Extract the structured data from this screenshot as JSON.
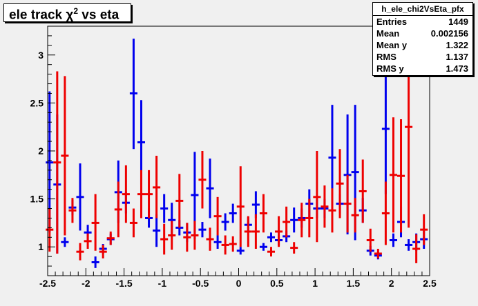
{
  "title_main": "ele track χ",
  "title_sup": "2",
  "title_rest": " vs eta",
  "stats": {
    "name": "h_ele_chi2VsEta_pfx",
    "rows": [
      {
        "key": "Entries",
        "value": "1449"
      },
      {
        "key": "Mean",
        "value": "0.002156"
      },
      {
        "key": "Mean y",
        "value": "1.322"
      },
      {
        "key": "RMS",
        "value": "1.137"
      },
      {
        "key": "RMS y",
        "value": "1.473"
      }
    ]
  },
  "colors": {
    "frame_bg": "#f0f0f0",
    "plot_bg": "#f0f0f0",
    "series_blue": "#0000ee",
    "series_red": "#ee0000"
  },
  "chart_data": {
    "type": "scatter",
    "title": "ele track χ² vs eta",
    "xlim": [
      -2.5,
      2.5
    ],
    "ylim": [
      0.7,
      3.3
    ],
    "x_ticks": [
      "-2.5",
      "-2",
      "-1.5",
      "-1",
      "-0.5",
      "0",
      "0.5",
      "1",
      "1.5",
      "2",
      "2.5"
    ],
    "y_ticks": [
      "1",
      "1.5",
      "2",
      "2.5",
      "3"
    ],
    "grid": false,
    "bin_width": 0.1,
    "series": [
      {
        "color": "blue",
        "points": [
          {
            "x": -2.475,
            "y": 1.88,
            "lo": 1.15,
            "hi": 2.62
          },
          {
            "x": -2.375,
            "y": 1.65,
            "lo": 0.93,
            "hi": 2.38
          },
          {
            "x": -2.275,
            "y": 1.05,
            "lo": 1.0,
            "hi": 1.1
          },
          {
            "x": -2.175,
            "y": 1.41,
            "lo": 1.33,
            "hi": 1.49
          },
          {
            "x": -2.075,
            "y": 1.52,
            "lo": 1.17,
            "hi": 1.87
          },
          {
            "x": -1.975,
            "y": 1.15,
            "lo": 1.07,
            "hi": 1.23
          },
          {
            "x": -1.875,
            "y": 0.84,
            "lo": 0.78,
            "hi": 0.9
          },
          {
            "x": -1.775,
            "y": 0.98,
            "lo": 0.93,
            "hi": 1.03
          },
          {
            "x": -1.675,
            "y": 1.08,
            "lo": 1.02,
            "hi": 1.14
          },
          {
            "x": -1.575,
            "y": 1.57,
            "lo": 1.25,
            "hi": 1.9
          },
          {
            "x": -1.475,
            "y": 1.46,
            "lo": 1.35,
            "hi": 1.57
          },
          {
            "x": -1.375,
            "y": 2.6,
            "lo": 2.02,
            "hi": 3.17
          },
          {
            "x": -1.275,
            "y": 2.09,
            "lo": 1.65,
            "hi": 2.53
          },
          {
            "x": -1.175,
            "y": 1.3,
            "lo": 1.2,
            "hi": 1.4
          },
          {
            "x": -1.075,
            "y": 1.17,
            "lo": 1.0,
            "hi": 1.34
          },
          {
            "x": -0.975,
            "y": 1.4,
            "lo": 1.25,
            "hi": 1.55
          },
          {
            "x": -0.875,
            "y": 1.28,
            "lo": 1.1,
            "hi": 1.46
          },
          {
            "x": -0.775,
            "y": 1.2,
            "lo": 1.12,
            "hi": 1.28
          },
          {
            "x": -0.675,
            "y": 1.15,
            "lo": 1.05,
            "hi": 1.25
          },
          {
            "x": -0.575,
            "y": 1.54,
            "lo": 1.08,
            "hi": 1.99
          },
          {
            "x": -0.475,
            "y": 1.18,
            "lo": 1.1,
            "hi": 1.26
          },
          {
            "x": -0.375,
            "y": 1.61,
            "lo": 1.3,
            "hi": 1.92
          },
          {
            "x": -0.275,
            "y": 1.05,
            "lo": 0.98,
            "hi": 1.12
          },
          {
            "x": -0.175,
            "y": 1.26,
            "lo": 1.17,
            "hi": 1.35
          },
          {
            "x": -0.075,
            "y": 1.35,
            "lo": 1.25,
            "hi": 1.45
          },
          {
            "x": 0.025,
            "y": 0.96,
            "lo": 0.92,
            "hi": 1.0
          },
          {
            "x": 0.125,
            "y": 1.23,
            "lo": 1.15,
            "hi": 1.31
          },
          {
            "x": 0.225,
            "y": 1.44,
            "lo": 1.3,
            "hi": 1.58
          },
          {
            "x": 0.325,
            "y": 1.0,
            "lo": 0.96,
            "hi": 1.04
          },
          {
            "x": 0.425,
            "y": 1.1,
            "lo": 1.05,
            "hi": 1.15
          },
          {
            "x": 0.525,
            "y": 1.07,
            "lo": 1.02,
            "hi": 1.12
          },
          {
            "x": 0.625,
            "y": 1.11,
            "lo": 1.05,
            "hi": 1.17
          },
          {
            "x": 0.725,
            "y": 1.28,
            "lo": 1.15,
            "hi": 1.41
          },
          {
            "x": 0.825,
            "y": 1.3,
            "lo": 1.2,
            "hi": 1.4
          },
          {
            "x": 0.925,
            "y": 1.45,
            "lo": 1.3,
            "hi": 1.6
          },
          {
            "x": 1.025,
            "y": 1.4,
            "lo": 1.3,
            "hi": 1.5
          },
          {
            "x": 1.125,
            "y": 1.4,
            "lo": 1.3,
            "hi": 1.5
          },
          {
            "x": 1.225,
            "y": 1.93,
            "lo": 1.38,
            "hi": 2.48
          },
          {
            "x": 1.325,
            "y": 1.45,
            "lo": 1.35,
            "hi": 1.55
          },
          {
            "x": 1.425,
            "y": 1.75,
            "lo": 1.13,
            "hi": 2.38
          },
          {
            "x": 1.525,
            "y": 1.78,
            "lo": 1.07,
            "hi": 2.48
          },
          {
            "x": 1.625,
            "y": 1.38,
            "lo": 1.25,
            "hi": 1.51
          },
          {
            "x": 1.725,
            "y": 0.96,
            "lo": 0.91,
            "hi": 1.01
          },
          {
            "x": 1.825,
            "y": 0.91,
            "lo": 0.87,
            "hi": 0.95
          },
          {
            "x": 1.925,
            "y": 2.23,
            "lo": 1.55,
            "hi": 2.9
          },
          {
            "x": 2.025,
            "y": 1.07,
            "lo": 1.0,
            "hi": 1.14
          },
          {
            "x": 2.125,
            "y": 1.26,
            "lo": 1.1,
            "hi": 1.42
          },
          {
            "x": 2.225,
            "y": 1.02,
            "lo": 0.96,
            "hi": 1.08
          },
          {
            "x": 2.325,
            "y": 1.05,
            "lo": 0.96,
            "hi": 1.14
          },
          {
            "x": 2.425,
            "y": 1.08,
            "lo": 0.98,
            "hi": 1.18
          }
        ]
      },
      {
        "color": "red",
        "points": [
          {
            "x": -2.475,
            "y": 1.18,
            "lo": 0.95,
            "hi": 1.4
          },
          {
            "x": -2.375,
            "y": 1.88,
            "lo": 0.93,
            "hi": 2.83
          },
          {
            "x": -2.275,
            "y": 1.95,
            "lo": 1.12,
            "hi": 2.78
          },
          {
            "x": -2.175,
            "y": 1.38,
            "lo": 1.25,
            "hi": 1.51
          },
          {
            "x": -2.075,
            "y": 0.95,
            "lo": 0.86,
            "hi": 1.04
          },
          {
            "x": -1.975,
            "y": 1.06,
            "lo": 0.98,
            "hi": 1.14
          },
          {
            "x": -1.875,
            "y": 1.25,
            "lo": 0.96,
            "hi": 1.55
          },
          {
            "x": -1.775,
            "y": 0.95,
            "lo": 0.88,
            "hi": 1.02
          },
          {
            "x": -1.675,
            "y": 1.09,
            "lo": 1.02,
            "hi": 1.16
          },
          {
            "x": -1.575,
            "y": 1.39,
            "lo": 1.1,
            "hi": 1.68
          },
          {
            "x": -1.475,
            "y": 1.55,
            "lo": 1.25,
            "hi": 1.85
          },
          {
            "x": -1.375,
            "y": 1.25,
            "lo": 1.1,
            "hi": 1.4
          },
          {
            "x": -1.275,
            "y": 1.55,
            "lo": 1.3,
            "hi": 1.8
          },
          {
            "x": -1.175,
            "y": 1.55,
            "lo": 1.3,
            "hi": 1.8
          },
          {
            "x": -1.075,
            "y": 1.62,
            "lo": 1.3,
            "hi": 1.95
          },
          {
            "x": -0.975,
            "y": 1.08,
            "lo": 0.92,
            "hi": 1.24
          },
          {
            "x": -0.875,
            "y": 1.12,
            "lo": 0.97,
            "hi": 1.27
          },
          {
            "x": -0.775,
            "y": 1.48,
            "lo": 1.2,
            "hi": 1.76
          },
          {
            "x": -0.675,
            "y": 1.1,
            "lo": 0.95,
            "hi": 1.25
          },
          {
            "x": -0.575,
            "y": 1.12,
            "lo": 0.97,
            "hi": 1.27
          },
          {
            "x": -0.475,
            "y": 1.7,
            "lo": 1.4,
            "hi": 2.0
          },
          {
            "x": -0.375,
            "y": 1.08,
            "lo": 0.96,
            "hi": 1.2
          },
          {
            "x": -0.275,
            "y": 1.32,
            "lo": 1.12,
            "hi": 1.52
          },
          {
            "x": -0.175,
            "y": 1.02,
            "lo": 0.92,
            "hi": 1.12
          },
          {
            "x": -0.075,
            "y": 1.03,
            "lo": 0.95,
            "hi": 1.11
          },
          {
            "x": 0.025,
            "y": 1.42,
            "lo": 1.0,
            "hi": 1.84
          },
          {
            "x": 0.125,
            "y": 1.16,
            "lo": 1.0,
            "hi": 1.32
          },
          {
            "x": 0.225,
            "y": 1.16,
            "lo": 0.98,
            "hi": 1.34
          },
          {
            "x": 0.325,
            "y": 1.35,
            "lo": 1.15,
            "hi": 1.55
          },
          {
            "x": 0.425,
            "y": 0.95,
            "lo": 0.9,
            "hi": 1.0
          },
          {
            "x": 0.525,
            "y": 1.16,
            "lo": 1.0,
            "hi": 1.32
          },
          {
            "x": 0.625,
            "y": 1.26,
            "lo": 1.1,
            "hi": 1.42
          },
          {
            "x": 0.725,
            "y": 0.99,
            "lo": 0.93,
            "hi": 1.05
          },
          {
            "x": 0.825,
            "y": 1.28,
            "lo": 1.1,
            "hi": 1.46
          },
          {
            "x": 0.925,
            "y": 1.3,
            "lo": 1.1,
            "hi": 1.5
          },
          {
            "x": 1.025,
            "y": 1.52,
            "lo": 1.05,
            "hi": 2.0
          },
          {
            "x": 1.125,
            "y": 1.42,
            "lo": 1.2,
            "hi": 1.64
          },
          {
            "x": 1.225,
            "y": 1.38,
            "lo": 1.15,
            "hi": 1.61
          },
          {
            "x": 1.325,
            "y": 1.66,
            "lo": 1.3,
            "hi": 2.02
          },
          {
            "x": 1.425,
            "y": 1.45,
            "lo": 1.15,
            "hi": 1.75
          },
          {
            "x": 1.525,
            "y": 1.33,
            "lo": 1.15,
            "hi": 1.51
          },
          {
            "x": 1.625,
            "y": 1.58,
            "lo": 1.25,
            "hi": 1.91
          },
          {
            "x": 1.725,
            "y": 1.07,
            "lo": 0.95,
            "hi": 1.19
          },
          {
            "x": 1.825,
            "y": 0.93,
            "lo": 0.88,
            "hi": 0.98
          },
          {
            "x": 1.925,
            "y": 1.35,
            "lo": 1.02,
            "hi": 1.68
          },
          {
            "x": 2.025,
            "y": 1.75,
            "lo": 1.15,
            "hi": 2.35
          },
          {
            "x": 2.125,
            "y": 1.74,
            "lo": 1.15,
            "hi": 2.33
          },
          {
            "x": 2.225,
            "y": 2.25,
            "lo": 1.2,
            "hi": 3.3
          },
          {
            "x": 2.325,
            "y": 0.98,
            "lo": 0.83,
            "hi": 1.13
          },
          {
            "x": 2.425,
            "y": 1.18,
            "lo": 1.02,
            "hi": 1.34
          }
        ]
      }
    ]
  }
}
